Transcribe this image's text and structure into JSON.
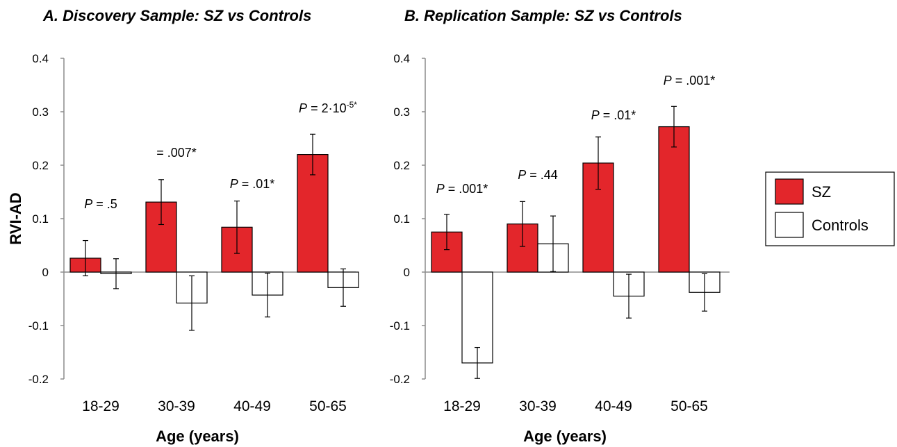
{
  "chart_data": [
    {
      "type": "bar",
      "title": "A. Discovery Sample: SZ vs Controls",
      "xlabel": "Age (years)",
      "ylabel": "RVI-AD",
      "categories": [
        "18-29",
        "30-39",
        "40-49",
        "50-65"
      ],
      "ylim": [
        -0.2,
        0.4
      ],
      "yticks": [
        "-0.2",
        "-0.1",
        "0",
        "0.1",
        "0.2",
        "0.3",
        "0.4"
      ],
      "grid": false,
      "series": [
        {
          "name": "SZ",
          "color": "#e3262b",
          "values": [
            0.026,
            0.131,
            0.084,
            0.22
          ],
          "errors": [
            0.033,
            0.042,
            0.049,
            0.038
          ]
        },
        {
          "name": "Controls",
          "color": "#ffffff",
          "values": [
            -0.003,
            -0.058,
            -0.043,
            -0.029
          ],
          "errors": [
            0.028,
            0.051,
            0.041,
            0.035
          ]
        }
      ],
      "annotations": [
        {
          "category": "18-29",
          "italic": "P",
          "text": " = .5"
        },
        {
          "category": "30-39",
          "italic": "",
          "text": "= .007*"
        },
        {
          "category": "40-49",
          "italic": "P",
          "text": " = .01*"
        },
        {
          "category": "50-65",
          "italic": "P",
          "text": " = 2·10",
          "sup": "-5*"
        }
      ]
    },
    {
      "type": "bar",
      "title": "B. Replication Sample: SZ vs Controls",
      "xlabel": "Age (years)",
      "ylabel": "",
      "categories": [
        "18-29",
        "30-39",
        "40-49",
        "50-65"
      ],
      "ylim": [
        -0.2,
        0.4
      ],
      "yticks": [
        "-0.2",
        "-0.1",
        "0",
        "0.1",
        "0.2",
        "0.3",
        "0.4"
      ],
      "grid": false,
      "series": [
        {
          "name": "SZ",
          "color": "#e3262b",
          "values": [
            0.075,
            0.09,
            0.204,
            0.272
          ],
          "errors": [
            0.033,
            0.042,
            0.049,
            0.038
          ]
        },
        {
          "name": "Controls",
          "color": "#ffffff",
          "values": [
            -0.17,
            0.053,
            -0.045,
            -0.038
          ],
          "errors": [
            0.029,
            0.052,
            0.041,
            0.035
          ]
        }
      ],
      "annotations": [
        {
          "category": "18-29",
          "italic": "P",
          "text": " = .001*"
        },
        {
          "category": "30-39",
          "italic": "P",
          "text": " = .44"
        },
        {
          "category": "40-49",
          "italic": "P",
          "text": " = .01*"
        },
        {
          "category": "50-65",
          "italic": "P",
          "text": " = .001*"
        }
      ]
    }
  ],
  "legend": {
    "placement": "right",
    "items": [
      {
        "label": "SZ",
        "color": "#e3262b"
      },
      {
        "label": "Controls",
        "color": "#ffffff"
      }
    ]
  }
}
